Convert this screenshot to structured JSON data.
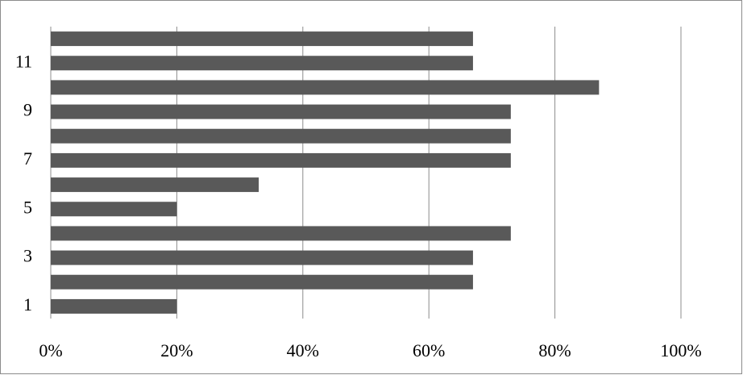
{
  "chart_data": {
    "type": "bar",
    "orientation": "horizontal",
    "categories": [
      "1",
      null,
      "3",
      null,
      "5",
      null,
      "7",
      null,
      "9",
      null,
      "11",
      null
    ],
    "values": [
      20,
      67,
      67,
      73,
      20,
      33,
      73,
      73,
      73,
      87,
      67,
      67
    ],
    "color": "#595959",
    "xlim": [
      0,
      100
    ],
    "xticks": [
      {
        "value": 0,
        "label": "0%"
      },
      {
        "value": 20,
        "label": "20%"
      },
      {
        "value": 40,
        "label": "40%"
      },
      {
        "value": 60,
        "label": "60%"
      },
      {
        "value": 80,
        "label": "80%"
      },
      {
        "value": 100,
        "label": "100%"
      }
    ],
    "grid": true
  }
}
